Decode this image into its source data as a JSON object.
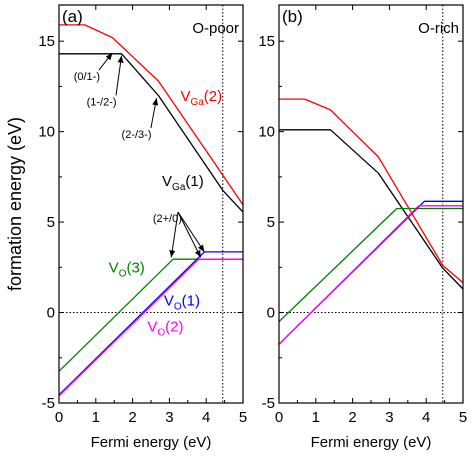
{
  "chart_data": [
    {
      "type": "line",
      "panel_label": "(a)",
      "condition": "O-poor",
      "xlabel": "Fermi energy (eV)",
      "ylabel": "formation energy (eV)",
      "xlim": [
        0,
        5
      ],
      "ylim": [
        -5,
        17
      ],
      "xticks": [
        0,
        1,
        2,
        3,
        4,
        5
      ],
      "yticks": [
        -5,
        0,
        5,
        10,
        15
      ],
      "vline_x": 4.45,
      "hline_y": 0,
      "series": [
        {
          "key": "vga2",
          "color": "#ff0000",
          "x": [
            0,
            0.7,
            1.45,
            2.7,
            4.45,
            5.0
          ],
          "y": [
            15.9,
            15.9,
            15.2,
            12.8,
            7.6,
            5.95
          ]
        },
        {
          "key": "vga1",
          "color": "#000000",
          "x": [
            0,
            1.7,
            2.7,
            4.45,
            5.0
          ],
          "y": [
            14.3,
            14.3,
            12.0,
            6.75,
            5.55
          ]
        },
        {
          "key": "vo3",
          "color": "#008000",
          "x": [
            0,
            3.1,
            5.0
          ],
          "y": [
            -3.25,
            2.95,
            2.95
          ]
        },
        {
          "key": "vo1",
          "color": "#0000ff",
          "x": [
            0,
            3.95,
            5.0
          ],
          "y": [
            -4.55,
            3.35,
            3.35
          ]
        },
        {
          "key": "vo2",
          "color": "#ff00ff",
          "x": [
            0,
            3.8,
            5.0
          ],
          "y": [
            -4.6,
            2.95,
            2.95
          ]
        }
      ],
      "labels": [
        {
          "key": "vga2",
          "main": "V",
          "sub": "Ga",
          "suffix": "(2)",
          "color": "#ff0000",
          "x": 3.3,
          "y": 11.7
        },
        {
          "key": "vga1",
          "main": "V",
          "sub": "Ga",
          "suffix": "(1)",
          "color": "#000000",
          "x": 2.8,
          "y": 7.0
        },
        {
          "key": "vo3",
          "main": "V",
          "sub": "O",
          "suffix": "(3)",
          "color": "#008000",
          "x": 1.35,
          "y": 2.2
        },
        {
          "key": "vo1",
          "main": "V",
          "sub": "O",
          "suffix": "(1)",
          "color": "#0000ff",
          "x": 2.85,
          "y": 0.4
        },
        {
          "key": "vo2",
          "main": "V",
          "sub": "O",
          "suffix": "(2)",
          "color": "#ff00ff",
          "x": 2.4,
          "y": -1.05
        }
      ],
      "annotations": [
        {
          "text": "(0/1-)",
          "x": 0.4,
          "y": 12.85,
          "arrows": [
            [
              1.45,
              14.35
            ]
          ]
        },
        {
          "text": "(1-/2-)",
          "x": 0.75,
          "y": 11.45,
          "arrows": [
            [
              1.7,
              14.2
            ]
          ]
        },
        {
          "text": "(2-/3-)",
          "x": 1.7,
          "y": 9.65,
          "arrows": [
            [
              2.65,
              11.85
            ]
          ]
        },
        {
          "text": "(2+/0)",
          "x": 2.55,
          "y": 5.0,
          "arrows": [
            [
              3.05,
              3.05
            ],
            [
              3.85,
              3.05
            ],
            [
              3.95,
              3.35
            ]
          ]
        }
      ]
    },
    {
      "type": "line",
      "panel_label": "(b)",
      "condition": "O-rich",
      "xlabel": "Fermi energy (eV)",
      "xlim": [
        0,
        5
      ],
      "ylim": [
        -5,
        17
      ],
      "xticks": [
        0,
        1,
        2,
        3,
        4,
        5
      ],
      "yticks": [
        -5,
        0,
        5,
        10,
        15
      ],
      "vline_x": 4.45,
      "hline_y": 0,
      "series": [
        {
          "key": "vga2",
          "color": "#ff0000",
          "x": [
            0,
            0.7,
            1.4,
            2.7,
            4.45,
            5.0
          ],
          "y": [
            11.8,
            11.8,
            11.2,
            8.6,
            2.6,
            1.65
          ]
        },
        {
          "key": "vga1",
          "color": "#000000",
          "x": [
            0,
            1.4,
            2.7,
            4.45,
            5.0
          ],
          "y": [
            10.1,
            10.1,
            7.7,
            2.45,
            1.3
          ]
        },
        {
          "key": "vo3",
          "color": "#008000",
          "x": [
            0,
            3.2,
            5.0
          ],
          "y": [
            -0.5,
            5.75,
            5.75
          ]
        },
        {
          "key": "vo1",
          "color": "#0000ff",
          "x": [
            0,
            3.95,
            5.0
          ],
          "y": [
            -1.75,
            6.15,
            6.15
          ]
        },
        {
          "key": "vo2",
          "color": "#ff00ff",
          "x": [
            0,
            3.8,
            5.0
          ],
          "y": [
            -1.75,
            5.9,
            5.9
          ]
        }
      ]
    }
  ]
}
